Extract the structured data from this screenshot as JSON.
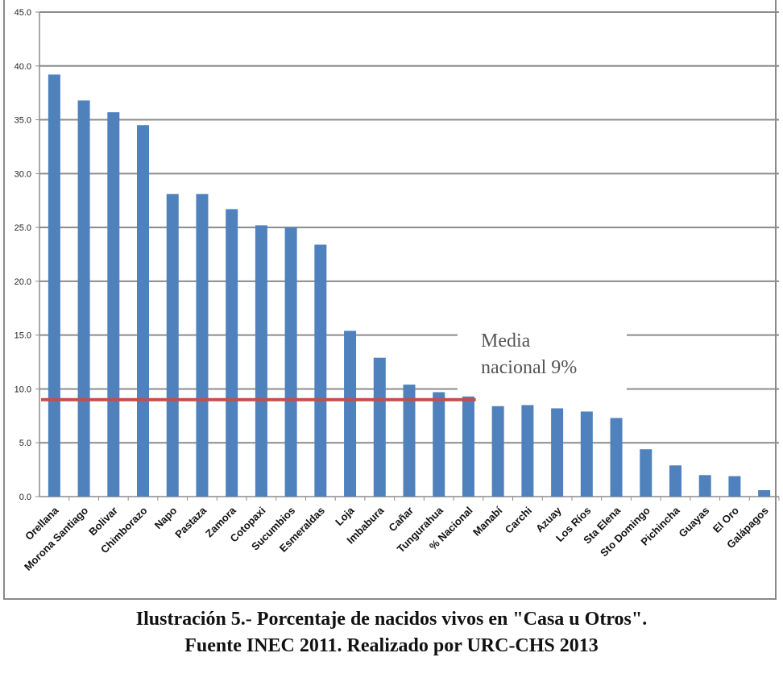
{
  "chart_data": {
    "type": "bar",
    "categories": [
      "Orellana",
      "Morona Santiago",
      "Bolivar",
      "Chimborazo",
      "Napo",
      "Pastaza",
      "Zamora",
      "Cotopaxi",
      "Sucumbios",
      "Esmeraldas",
      "Loja",
      "Imbabura",
      "Cañar",
      "Tungurahua",
      "% Nacional",
      "Manabí",
      "Carchi",
      "Azuay",
      "Los Ríos",
      "Sta Elena",
      "Sto Domingo",
      "Pichincha",
      "Guayas",
      "El Oro",
      "Galápagos"
    ],
    "values": [
      39.2,
      36.8,
      35.7,
      34.5,
      28.1,
      28.1,
      26.7,
      25.2,
      25.0,
      23.4,
      15.4,
      12.9,
      10.4,
      9.7,
      9.3,
      8.4,
      8.5,
      8.2,
      7.9,
      7.3,
      4.4,
      2.9,
      2.0,
      1.9,
      0.6
    ],
    "ylim": [
      0,
      45
    ],
    "yticks": [
      "0.0",
      "5.0",
      "10.0",
      "15.0",
      "20.0",
      "25.0",
      "30.0",
      "35.0",
      "40.0",
      "45.0"
    ],
    "grid": true,
    "bar_color": "#4f81bd",
    "reference_line": {
      "value": 9,
      "color": "#c0504d"
    },
    "annotation": {
      "line1": "Media",
      "line2": "nacional 9%"
    }
  },
  "caption": {
    "line1": "Ilustración 5.- Porcentaje de nacidos vivos en \"Casa u Otros\".",
    "line2": "Fuente INEC 2011. Realizado por URC-CHS 2013"
  }
}
